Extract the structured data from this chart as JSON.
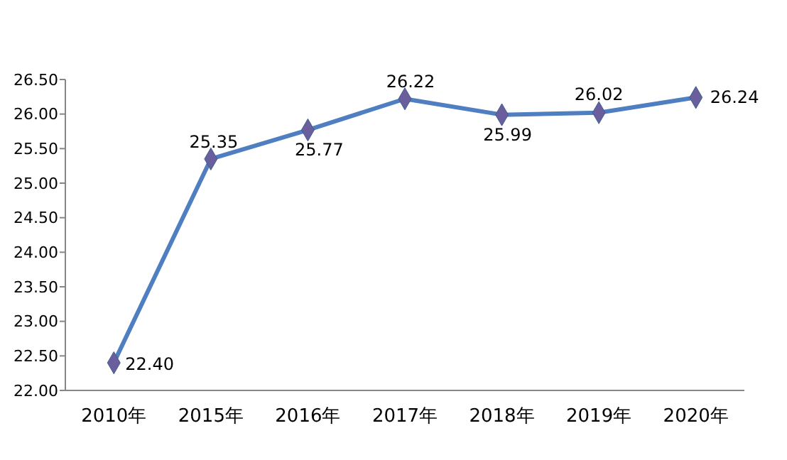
{
  "chart_data": {
    "type": "line",
    "categories": [
      "2010年",
      "2015年",
      "2016年",
      "2017年",
      "2018年",
      "2019年",
      "2020年"
    ],
    "series": [
      {
        "color": "#4f7fc0",
        "values": [
          22.4,
          25.35,
          25.77,
          26.22,
          25.99,
          26.02,
          26.24
        ]
      }
    ],
    "ylim": [
      22,
      26.5
    ],
    "yticks": [
      {
        "value": 22,
        "label": "22.00"
      },
      {
        "value": 22.5,
        "label": "22.50"
      },
      {
        "value": 23,
        "label": "23.00"
      },
      {
        "value": 23.5,
        "label": "23.50"
      },
      {
        "value": 24,
        "label": "24.00"
      },
      {
        "value": 24.5,
        "label": "24.50"
      },
      {
        "value": 25,
        "label": "25.00"
      },
      {
        "value": 25.5,
        "label": "25.50"
      },
      {
        "value": 26,
        "label": "26.00"
      },
      {
        "value": 26.5,
        "label": "26.50"
      }
    ],
    "value_labels": [
      "22.40",
      "25.35",
      "25.77",
      "26.22",
      "25.99",
      "26.02",
      "26.24"
    ],
    "marker": "diamond",
    "line_style": "solid",
    "grid": false
  }
}
